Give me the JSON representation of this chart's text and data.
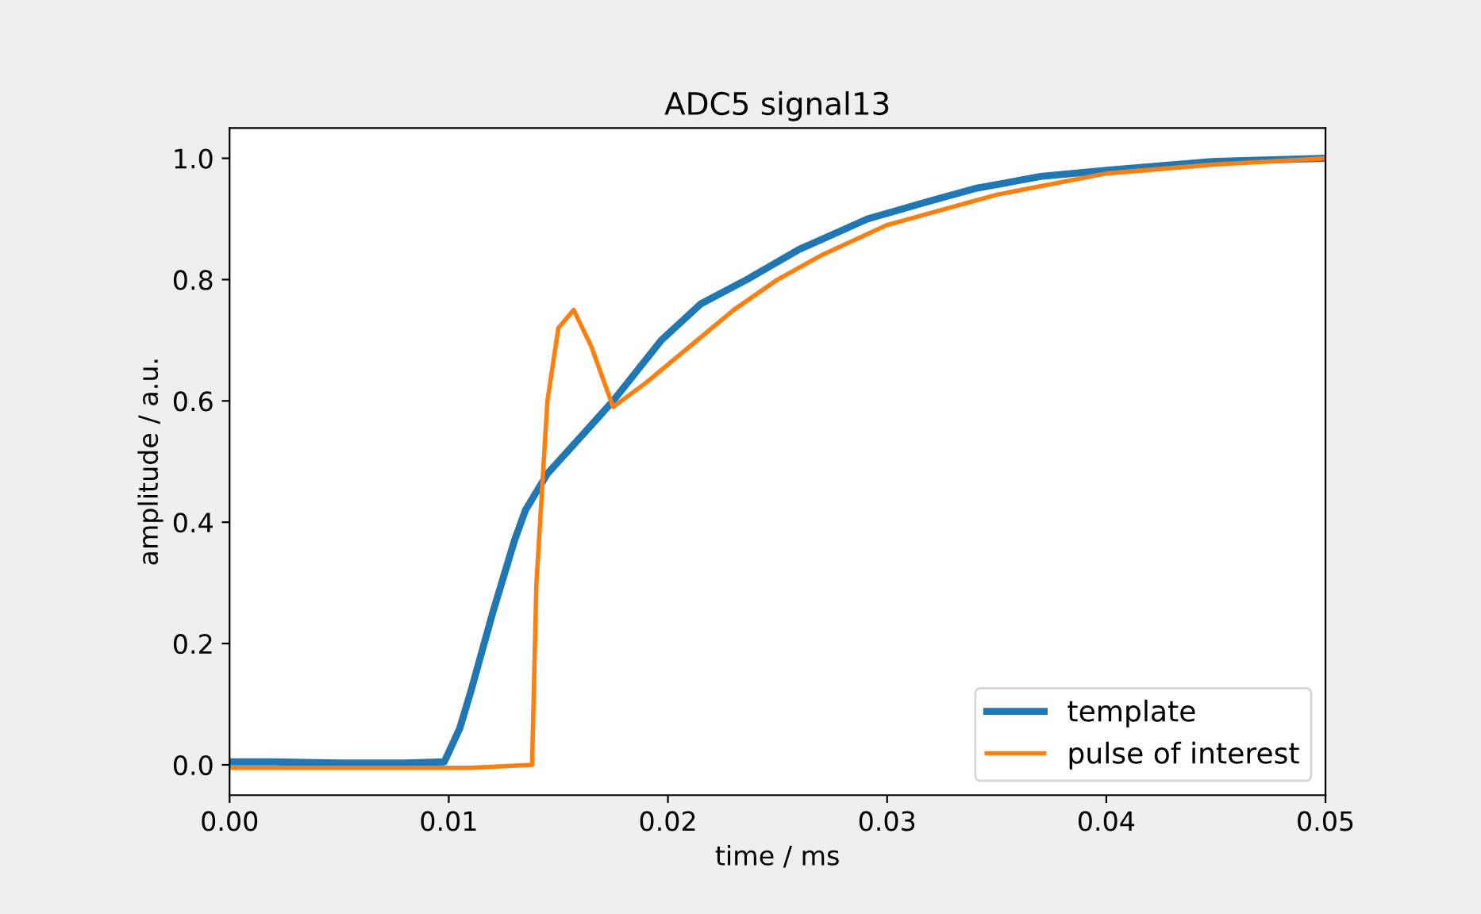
{
  "chart_data": {
    "type": "line",
    "title": "ADC5 signal13",
    "xlabel": "time / ms",
    "ylabel": "amplitude / a.u.",
    "xlim": [
      0,
      0.05
    ],
    "ylim": [
      -0.05,
      1.05
    ],
    "xticks": [
      {
        "value": 0,
        "label": "0.00"
      },
      {
        "value": 0.01,
        "label": "0.01"
      },
      {
        "value": 0.02,
        "label": "0.02"
      },
      {
        "value": 0.03,
        "label": "0.03"
      },
      {
        "value": 0.04,
        "label": "0.04"
      },
      {
        "value": 0.05,
        "label": "0.05"
      }
    ],
    "yticks": [
      {
        "value": 0,
        "label": "0.0"
      },
      {
        "value": 0.2,
        "label": "0.2"
      },
      {
        "value": 0.4,
        "label": "0.4"
      },
      {
        "value": 0.6,
        "label": "0.6"
      },
      {
        "value": 0.8,
        "label": "0.8"
      },
      {
        "value": 1,
        "label": "1.0"
      }
    ],
    "legend": "bottom right",
    "grid": false,
    "series": [
      {
        "name": "template",
        "color": "#1f77b4",
        "x": [
          0,
          0.002,
          0.005,
          0.008,
          0.0098,
          0.0105,
          0.011,
          0.012,
          0.013,
          0.0135,
          0.0145,
          0.016,
          0.0175,
          0.0197,
          0.0215,
          0.0236,
          0.026,
          0.0291,
          0.032,
          0.034,
          0.037,
          0.04,
          0.045,
          0.05
        ],
        "values": [
          0.005,
          0.005,
          0.003,
          0.003,
          0.005,
          0.06,
          0.12,
          0.25,
          0.37,
          0.42,
          0.48,
          0.54,
          0.6,
          0.7,
          0.76,
          0.8,
          0.85,
          0.9,
          0.93,
          0.95,
          0.97,
          0.98,
          0.995,
          1.0
        ]
      },
      {
        "name": "pulse of interest",
        "color": "#ff7f0e",
        "x": [
          0,
          0.003,
          0.006,
          0.009,
          0.011,
          0.0138,
          0.014,
          0.0145,
          0.015,
          0.0157,
          0.0165,
          0.0175,
          0.019,
          0.021,
          0.023,
          0.025,
          0.027,
          0.03,
          0.035,
          0.04,
          0.045,
          0.05
        ],
        "values": [
          -0.005,
          -0.005,
          -0.005,
          -0.005,
          -0.005,
          0.0,
          0.3,
          0.6,
          0.72,
          0.75,
          0.69,
          0.59,
          0.63,
          0.69,
          0.75,
          0.8,
          0.84,
          0.89,
          0.94,
          0.975,
          0.99,
          1.0
        ]
      }
    ]
  }
}
